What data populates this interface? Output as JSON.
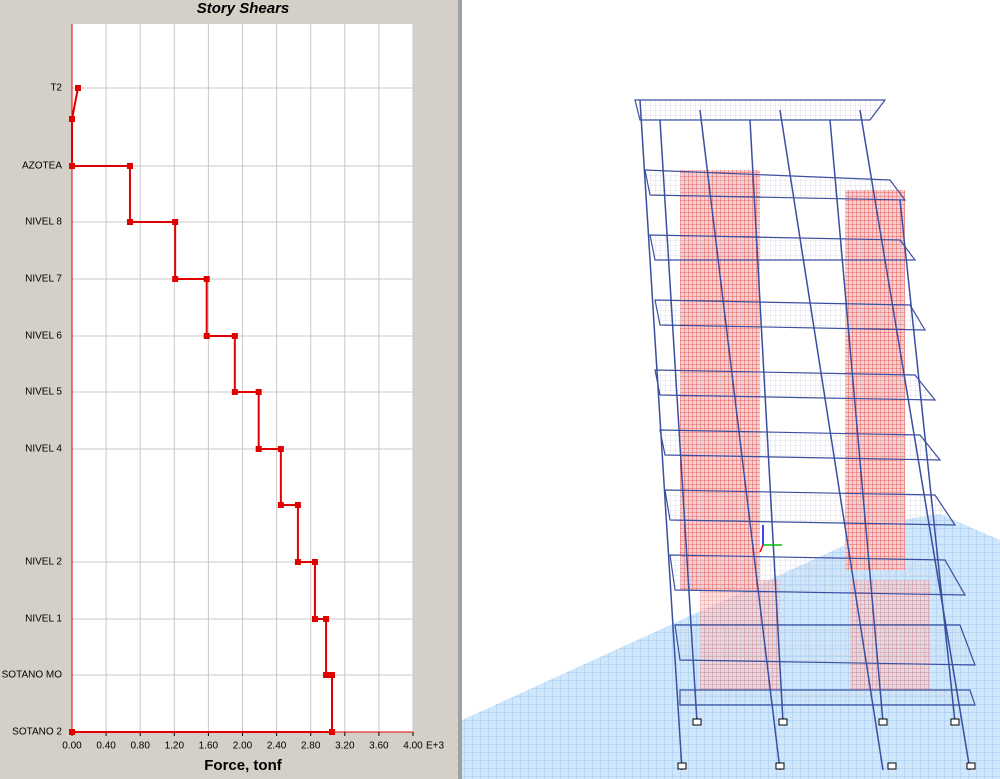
{
  "chart_data": {
    "type": "story-shear",
    "title": "Story Shears",
    "x_label": "Force, tonf",
    "x_multiplier": "E+3",
    "xlim": [
      0,
      4
    ],
    "xticks": [
      {
        "value": 0,
        "label": "0.00"
      },
      {
        "value": 0.4,
        "label": "0.40"
      },
      {
        "value": 0.8,
        "label": "0.80"
      },
      {
        "value": 1.2,
        "label": "1.20"
      },
      {
        "value": 1.6,
        "label": "1.60"
      },
      {
        "value": 2,
        "label": "2.00"
      },
      {
        "value": 2.4,
        "label": "2.40"
      },
      {
        "value": 2.8,
        "label": "2.80"
      },
      {
        "value": 3.2,
        "label": "3.20"
      },
      {
        "value": 3.6,
        "label": "3.60"
      },
      {
        "value": 4,
        "label": "4.00"
      }
    ],
    "categories": [
      "T2",
      null,
      "AZOTEA",
      "NIVEL 8",
      "NIVEL 7",
      "NIVEL 6",
      "NIVEL 5",
      "NIVEL 4",
      null,
      "NIVEL 2",
      "NIVEL 1",
      "SOTANO MO",
      "SOTANO 2"
    ],
    "values": [
      0.07,
      0,
      0.68,
      1.21,
      1.58,
      1.91,
      2.19,
      2.45,
      2.65,
      2.85,
      2.98,
      3.05,
      0
    ],
    "color": "#e00000",
    "grid": true
  }
}
